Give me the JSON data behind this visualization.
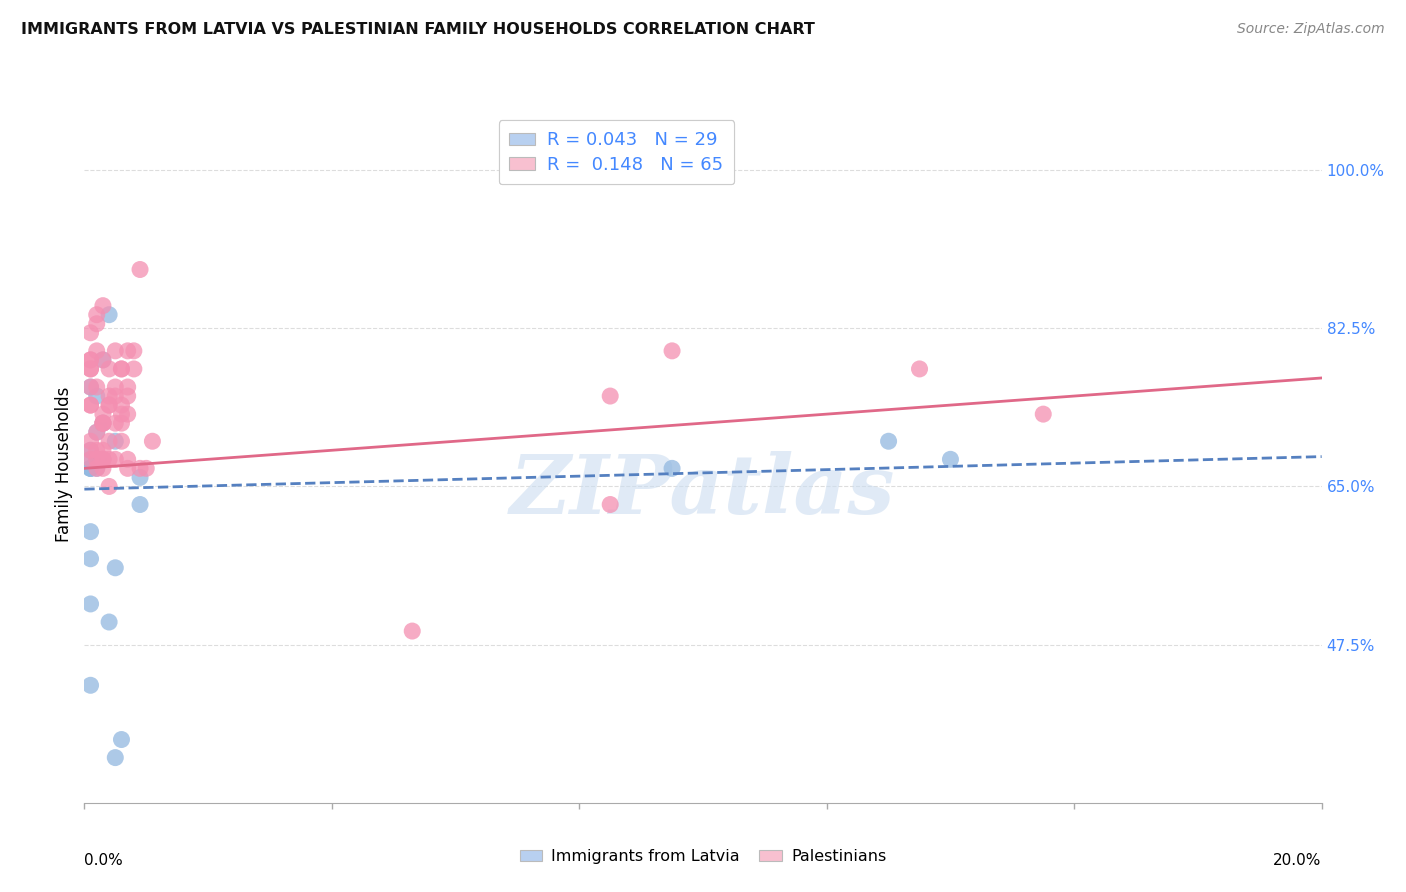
{
  "title": "IMMIGRANTS FROM LATVIA VS PALESTINIAN FAMILY HOUSEHOLDS CORRELATION CHART",
  "source": "Source: ZipAtlas.com",
  "ylabel": "Family Households",
  "y_ticks_pct": [
    47.5,
    65.0,
    82.5,
    100.0
  ],
  "y_tick_labels": [
    "47.5%",
    "65.0%",
    "82.5%",
    "100.0%"
  ],
  "x_min": 0.0,
  "x_max": 0.2,
  "y_min": 0.3,
  "y_max": 1.05,
  "legend_label_1": "Immigrants from Latvia",
  "legend_label_2": "Palestinians",
  "scatter_blue_x": [
    0.001,
    0.002,
    0.001,
    0.003,
    0.001,
    0.002,
    0.003,
    0.004,
    0.005,
    0.002,
    0.003,
    0.001,
    0.002,
    0.001,
    0.001,
    0.002,
    0.001,
    0.001,
    0.001,
    0.001,
    0.005,
    0.004,
    0.005,
    0.006,
    0.009,
    0.009,
    0.095,
    0.14,
    0.13
  ],
  "scatter_blue_y": [
    0.68,
    0.75,
    0.76,
    0.79,
    0.69,
    0.71,
    0.72,
    0.84,
    0.7,
    0.68,
    0.68,
    0.67,
    0.68,
    0.67,
    0.67,
    0.67,
    0.6,
    0.57,
    0.52,
    0.43,
    0.56,
    0.5,
    0.35,
    0.37,
    0.63,
    0.66,
    0.67,
    0.68,
    0.7
  ],
  "scatter_pink_x": [
    0.001,
    0.002,
    0.001,
    0.003,
    0.002,
    0.001,
    0.002,
    0.003,
    0.004,
    0.005,
    0.002,
    0.003,
    0.001,
    0.002,
    0.001,
    0.001,
    0.002,
    0.001,
    0.001,
    0.001,
    0.001,
    0.001,
    0.002,
    0.002,
    0.003,
    0.003,
    0.004,
    0.004,
    0.005,
    0.005,
    0.004,
    0.003,
    0.003,
    0.004,
    0.005,
    0.006,
    0.006,
    0.006,
    0.005,
    0.004,
    0.003,
    0.003,
    0.003,
    0.004,
    0.007,
    0.009,
    0.01,
    0.007,
    0.006,
    0.006,
    0.006,
    0.007,
    0.007,
    0.007,
    0.007,
    0.008,
    0.008,
    0.009,
    0.011,
    0.053,
    0.085,
    0.085,
    0.095,
    0.135,
    0.155
  ],
  "scatter_pink_y": [
    0.68,
    0.68,
    0.69,
    0.73,
    0.71,
    0.7,
    0.69,
    0.68,
    0.68,
    0.68,
    0.67,
    0.68,
    0.76,
    0.8,
    0.79,
    0.79,
    0.76,
    0.78,
    0.74,
    0.74,
    0.78,
    0.82,
    0.83,
    0.84,
    0.85,
    0.79,
    0.78,
    0.75,
    0.75,
    0.76,
    0.74,
    0.72,
    0.72,
    0.7,
    0.72,
    0.73,
    0.72,
    0.78,
    0.8,
    0.74,
    0.69,
    0.72,
    0.67,
    0.65,
    0.67,
    0.67,
    0.67,
    0.68,
    0.7,
    0.74,
    0.78,
    0.75,
    0.73,
    0.76,
    0.8,
    0.78,
    0.8,
    0.89,
    0.7,
    0.49,
    0.75,
    0.63,
    0.8,
    0.78,
    0.73
  ],
  "blue_trend_slope": 0.18,
  "blue_trend_intercept": 0.647,
  "pink_trend_slope": 0.5,
  "pink_trend_intercept": 0.67,
  "blue_scatter_color": "#92b8e0",
  "pink_scatter_color": "#f48fb1",
  "blue_line_color": "#5580c0",
  "pink_line_color": "#e06888",
  "blue_patch_color": "#b8d0f0",
  "pink_patch_color": "#f8c0d0",
  "watermark_text": "ZIPatlas",
  "watermark_color": "#ccddf0",
  "background_color": "#ffffff",
  "grid_color": "#dddddd",
  "right_tick_color": "#4488ff",
  "title_color": "#111111",
  "source_color": "#888888"
}
